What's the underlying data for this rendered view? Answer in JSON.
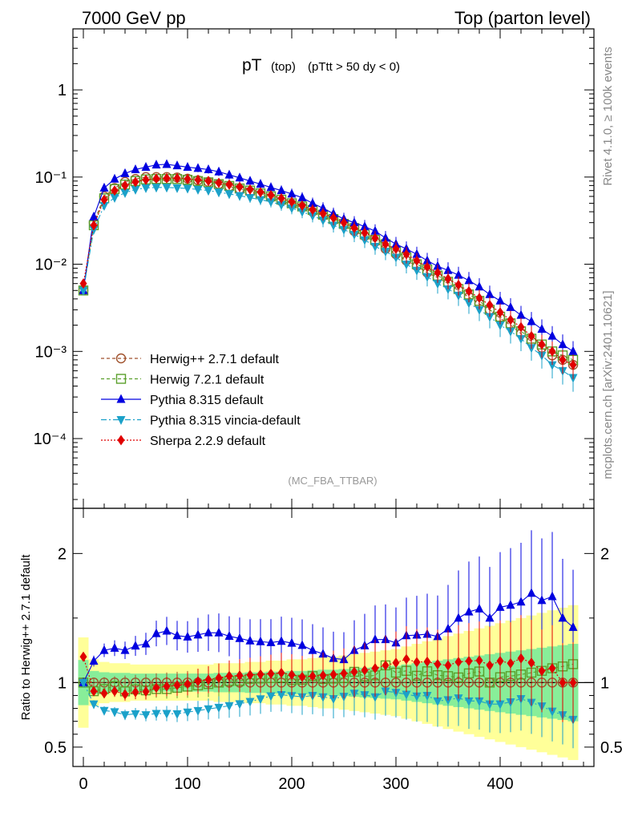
{
  "header": {
    "left": "7000 GeV pp",
    "right": "Top (parton level)"
  },
  "side_labels": {
    "top": "Rivet 4.1.0, ≥ 100k events",
    "bottom": "mcplots.cern.ch [arXiv:2401.10621]"
  },
  "chart_data": {
    "type": "scatter",
    "title_main": "pT",
    "title_sub1": "(top)",
    "title_sub2": "(pTtt > 50 dy < 0)",
    "analysis": "(MC_FBA_TTBAR)",
    "ylabel_ratio": "Ratio to Herwig++ 2.7.1 default",
    "xlim": [
      -10,
      490
    ],
    "ylim_main_log10": [
      -4.8,
      0.7
    ],
    "ylim_ratio": [
      0.35,
      2.35
    ],
    "x_ticks": [
      "0",
      "100",
      "200",
      "300",
      "400"
    ],
    "main_y_ticks": [
      "1",
      "10⁻¹",
      "10⁻²",
      "10⁻³",
      "10⁻⁴"
    ],
    "ratio_y_ticks": [
      "0.5",
      "1",
      "2"
    ],
    "x": [
      0,
      10,
      20,
      30,
      40,
      50,
      60,
      70,
      80,
      90,
      100,
      110,
      120,
      130,
      140,
      150,
      160,
      170,
      180,
      190,
      200,
      210,
      220,
      230,
      240,
      250,
      260,
      270,
      280,
      290,
      300,
      310,
      320,
      330,
      340,
      350,
      360,
      370,
      380,
      390,
      400,
      410,
      420,
      430,
      440,
      450,
      460,
      470
    ],
    "series": [
      {
        "name": "Herwig++ 2.7.1 default",
        "color": "#a0522d",
        "marker": "circle-open",
        "values": [
          0.005,
          0.03,
          0.06,
          0.075,
          0.088,
          0.095,
          0.1,
          0.1,
          0.1,
          0.099,
          0.096,
          0.092,
          0.088,
          0.083,
          0.078,
          0.073,
          0.068,
          0.063,
          0.058,
          0.053,
          0.049,
          0.045,
          0.04,
          0.036,
          0.032,
          0.028,
          0.024,
          0.021,
          0.018,
          0.015,
          0.013,
          0.011,
          0.0095,
          0.008,
          0.007,
          0.006,
          0.005,
          0.0042,
          0.0035,
          0.003,
          0.0024,
          0.002,
          0.0016,
          0.0013,
          0.0011,
          0.0009,
          0.0008,
          0.0007
        ]
      },
      {
        "name": "Herwig 7.2.1 default",
        "color": "#5aa02c",
        "marker": "square-open",
        "values": [
          0.005,
          0.028,
          0.057,
          0.073,
          0.082,
          0.09,
          0.094,
          0.095,
          0.095,
          0.095,
          0.093,
          0.09,
          0.087,
          0.083,
          0.079,
          0.074,
          0.07,
          0.065,
          0.06,
          0.055,
          0.05,
          0.046,
          0.042,
          0.037,
          0.033,
          0.029,
          0.026,
          0.022,
          0.019,
          0.017,
          0.014,
          0.012,
          0.01,
          0.0087,
          0.0074,
          0.0063,
          0.0052,
          0.0045,
          0.0038,
          0.003,
          0.0025,
          0.0021,
          0.0017,
          0.0014,
          0.0012,
          0.001,
          0.0009,
          0.0008
        ]
      },
      {
        "name": "Pythia 8.315 default",
        "color": "#0000e0",
        "marker": "triangle-up",
        "values": [
          0.005,
          0.035,
          0.075,
          0.095,
          0.11,
          0.122,
          0.13,
          0.138,
          0.14,
          0.135,
          0.13,
          0.126,
          0.122,
          0.115,
          0.106,
          0.098,
          0.09,
          0.083,
          0.076,
          0.07,
          0.064,
          0.058,
          0.05,
          0.044,
          0.038,
          0.033,
          0.03,
          0.027,
          0.024,
          0.02,
          0.017,
          0.015,
          0.013,
          0.011,
          0.0095,
          0.0085,
          0.0075,
          0.0065,
          0.0055,
          0.0045,
          0.0038,
          0.0032,
          0.0026,
          0.0022,
          0.0018,
          0.0015,
          0.0012,
          0.001
        ]
      },
      {
        "name": "Pythia 8.315 vincia-default",
        "color": "#1ba1c9",
        "marker": "triangle-down",
        "values": [
          0.005,
          0.025,
          0.047,
          0.058,
          0.066,
          0.072,
          0.075,
          0.076,
          0.076,
          0.075,
          0.074,
          0.072,
          0.07,
          0.067,
          0.064,
          0.061,
          0.058,
          0.055,
          0.052,
          0.048,
          0.044,
          0.04,
          0.036,
          0.032,
          0.028,
          0.025,
          0.022,
          0.019,
          0.016,
          0.014,
          0.012,
          0.01,
          0.0085,
          0.0072,
          0.006,
          0.0052,
          0.0044,
          0.0036,
          0.003,
          0.0025,
          0.002,
          0.0017,
          0.0014,
          0.0011,
          0.0009,
          0.0007,
          0.0006,
          0.0005
        ]
      },
      {
        "name": "Sherpa 2.2.9 default",
        "color": "#e00000",
        "marker": "diamond",
        "values": [
          0.006,
          0.028,
          0.055,
          0.07,
          0.08,
          0.088,
          0.093,
          0.096,
          0.097,
          0.097,
          0.095,
          0.093,
          0.09,
          0.086,
          0.082,
          0.077,
          0.072,
          0.067,
          0.062,
          0.057,
          0.052,
          0.047,
          0.042,
          0.038,
          0.034,
          0.03,
          0.026,
          0.023,
          0.02,
          0.017,
          0.015,
          0.013,
          0.011,
          0.0093,
          0.008,
          0.0068,
          0.0058,
          0.0049,
          0.0041,
          0.0034,
          0.0028,
          0.0023,
          0.0019,
          0.0015,
          0.0012,
          0.001,
          0.0008,
          0.0007
        ]
      }
    ],
    "ratio_band_halfwidth": [
      0.35,
      0.18,
      0.16,
      0.15,
      0.15,
      0.14,
      0.14,
      0.14,
      0.14,
      0.14,
      0.14,
      0.14,
      0.14,
      0.15,
      0.15,
      0.15,
      0.16,
      0.16,
      0.17,
      0.17,
      0.18,
      0.18,
      0.19,
      0.2,
      0.2,
      0.21,
      0.22,
      0.23,
      0.24,
      0.25,
      0.26,
      0.28,
      0.3,
      0.32,
      0.34,
      0.36,
      0.38,
      0.4,
      0.42,
      0.44,
      0.46,
      0.48,
      0.5,
      0.52,
      0.54,
      0.56,
      0.58,
      0.6
    ]
  }
}
